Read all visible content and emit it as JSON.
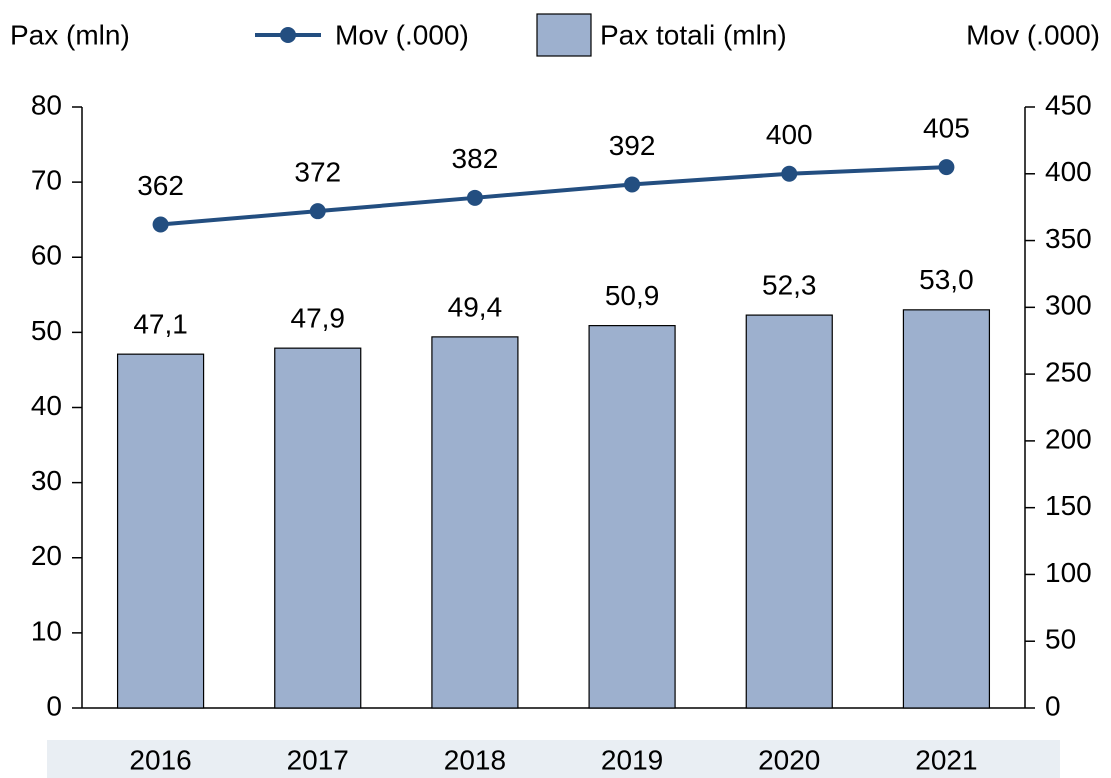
{
  "chart_data": {
    "type": "bar",
    "y_label": "Pax (mln)",
    "y2_label": "Mov (.000)",
    "categories": [
      "2016",
      "2017",
      "2018",
      "2019",
      "2020",
      "2021"
    ],
    "series": [
      {
        "name": "Mov (.000)",
        "type": "line",
        "axis": "y2",
        "color": "#234e80",
        "values": [
          362,
          372,
          382,
          392,
          400,
          405
        ]
      },
      {
        "name": "Pax totali (mln)",
        "type": "bar",
        "color": "#9db0ce",
        "values": [
          47.1,
          47.9,
          49.4,
          50.9,
          52.3,
          53.0
        ],
        "value_labels": [
          "47,1",
          "47,9",
          "49,4",
          "50,9",
          "52,3",
          "53,0"
        ]
      }
    ],
    "ylim": [
      0,
      80
    ],
    "yticks": [
      0,
      10,
      20,
      30,
      40,
      50,
      60,
      70,
      80
    ],
    "y2lim": [
      0,
      450
    ],
    "y2ticks": [
      0,
      50,
      100,
      150,
      200,
      250,
      300,
      350,
      400,
      450
    ]
  }
}
